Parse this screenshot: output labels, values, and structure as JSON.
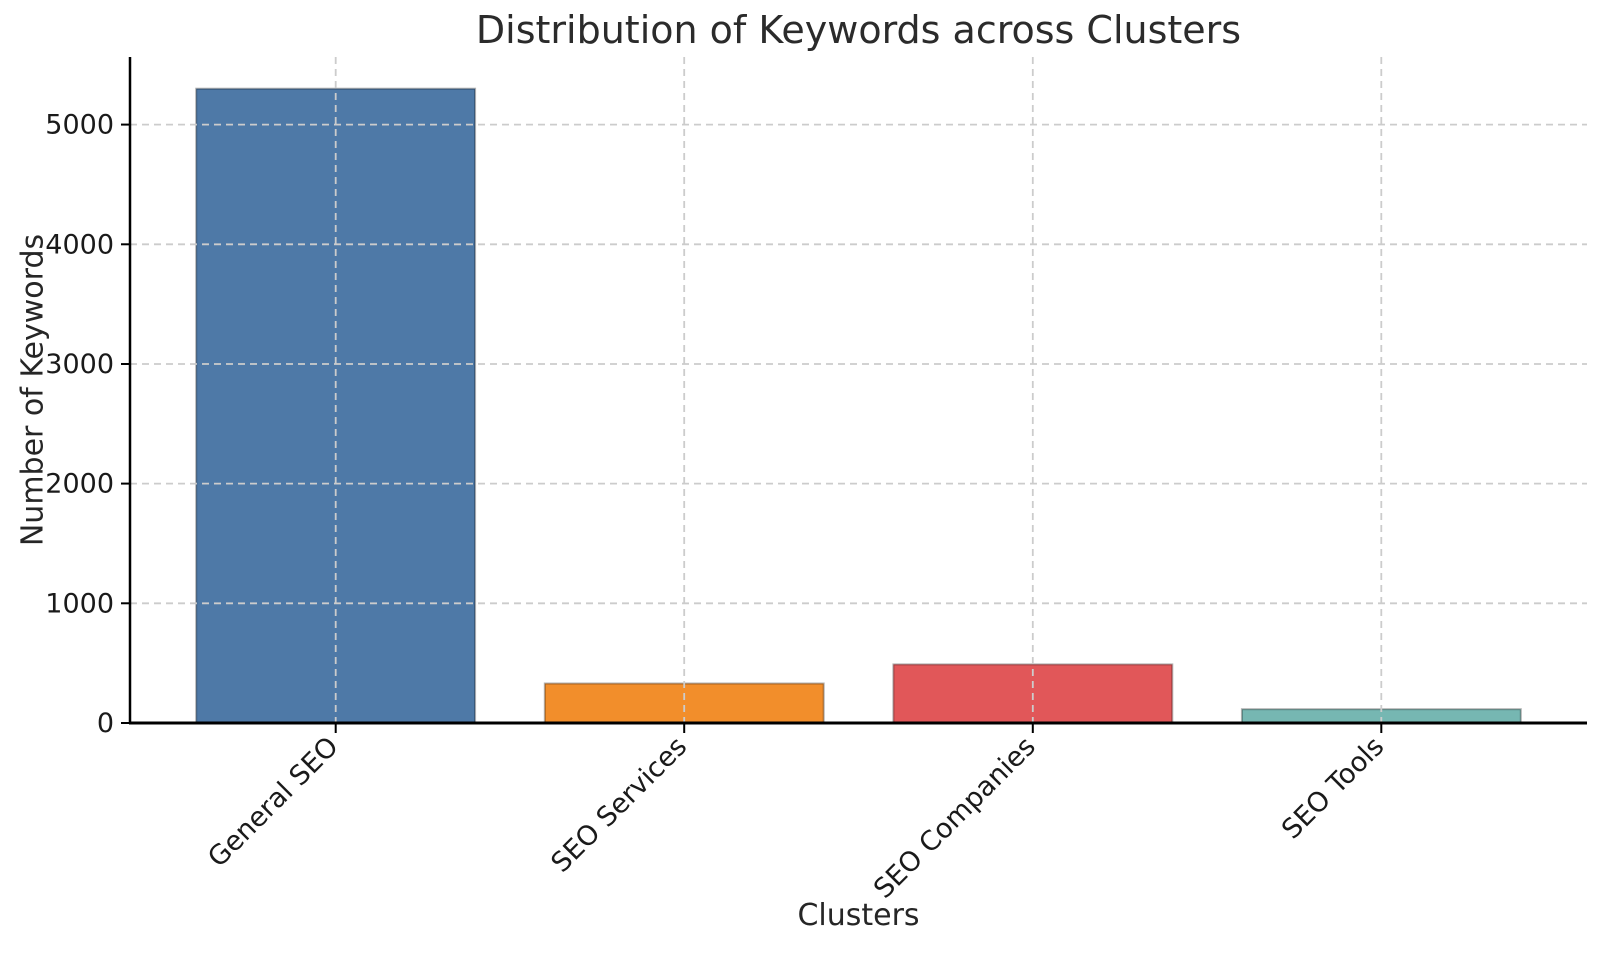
{
  "chart_data": {
    "type": "bar",
    "title": "Distribution of Keywords across Clusters",
    "xlabel": "Clusters",
    "ylabel": "Number of Keywords",
    "categories": [
      "General SEO",
      "SEO Services",
      "SEO Companies",
      "SEO Tools"
    ],
    "values": [
      5300,
      330,
      490,
      115
    ],
    "bar_colors": [
      "#4E79A7",
      "#F28E2B",
      "#E15759",
      "#76B7B2"
    ],
    "yticks": [
      0,
      1000,
      2000,
      3000,
      4000,
      5000
    ],
    "ylim": [
      0,
      5565
    ],
    "x_tick_rotation_deg": 45,
    "grid": {
      "visible": true,
      "style": "dashed",
      "color": "#cccccc",
      "axes": "both",
      "on_top_of_bars": true
    },
    "spines": {
      "left": true,
      "bottom": true,
      "top": false,
      "right": false,
      "color": "#000000"
    },
    "background": "#ffffff",
    "legend": null
  }
}
